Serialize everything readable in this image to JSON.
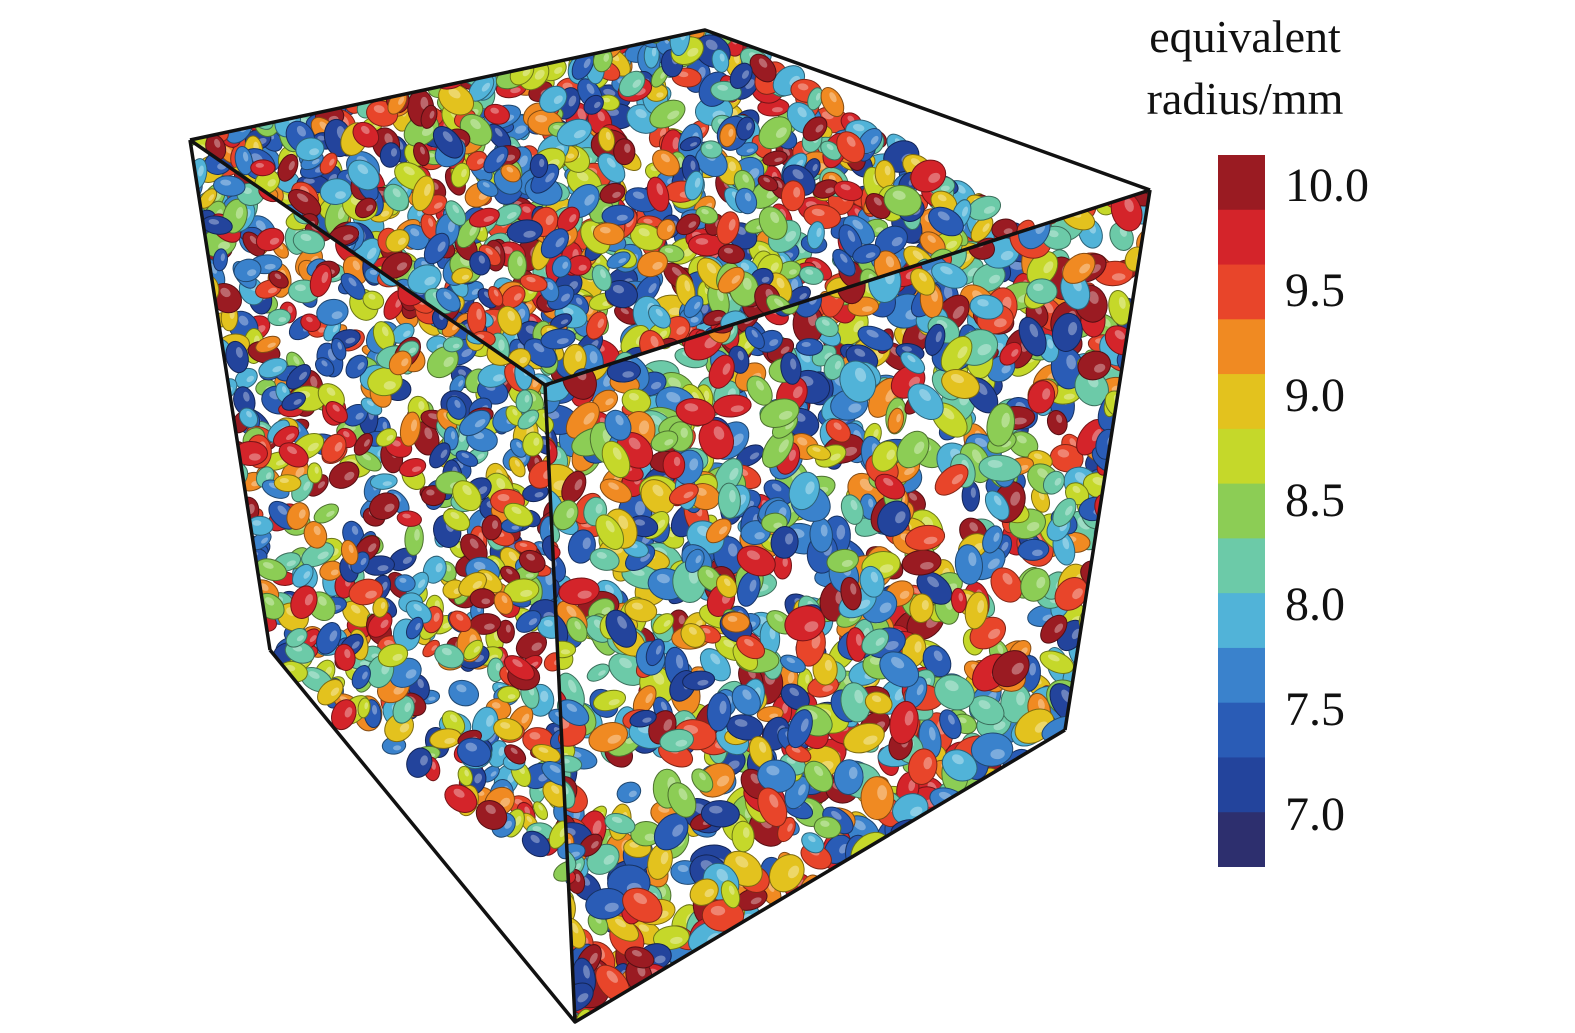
{
  "colorbar": {
    "title_line1": "equivalent",
    "title_line2": "radius/mm",
    "min": 6.75,
    "max": 10.15,
    "ticks": [
      {
        "value": 10.0,
        "label": "10.0"
      },
      {
        "value": 9.5,
        "label": "9.5"
      },
      {
        "value": 9.0,
        "label": "9.0"
      },
      {
        "value": 8.5,
        "label": "8.5"
      },
      {
        "value": 8.0,
        "label": "8.0"
      },
      {
        "value": 7.5,
        "label": "7.5"
      },
      {
        "value": 7.0,
        "label": "7.0"
      }
    ],
    "colors": [
      "#2d2f6e",
      "#23449c",
      "#2a5cb6",
      "#3a82cc",
      "#51b3d8",
      "#6ccaa8",
      "#8ccd55",
      "#c5d82a",
      "#e3c21e",
      "#f08a22",
      "#e8452a",
      "#d4242a",
      "#9a1b22"
    ]
  }
}
